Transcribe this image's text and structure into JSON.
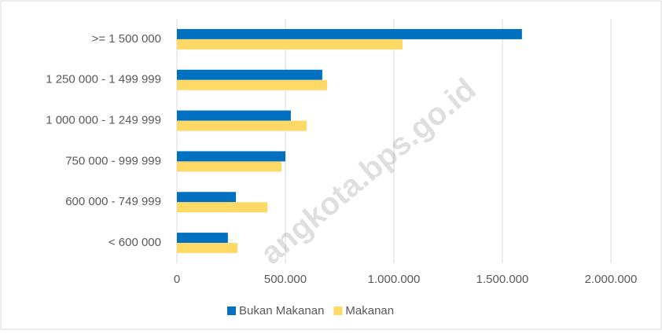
{
  "chart_data": {
    "type": "bar",
    "orientation": "horizontal",
    "categories": [
      ">= 1 500 000",
      "1 250 000 - 1 499 999",
      "1 000 000 - 1 249 999",
      "750 000 - 999 999",
      "600 000 - 749 999",
      "< 600 000"
    ],
    "series": [
      {
        "name": "Bukan Makanan",
        "color": "#0070c0",
        "values": [
          1590000,
          670000,
          525000,
          500000,
          272000,
          235000
        ]
      },
      {
        "name": "Makanan",
        "color": "#ffd966",
        "values": [
          1040000,
          692000,
          598000,
          482000,
          417000,
          279000
        ]
      }
    ],
    "xlim": [
      0,
      2000000
    ],
    "xticks": [
      0,
      {
        "value": 500000,
        "label": "500.000"
      },
      {
        "value": 1000000,
        "label": "1.000.000"
      },
      {
        "value": 1500000,
        "label": "1.500.000"
      },
      {
        "value": 2000000,
        "label": "2.000.000"
      }
    ],
    "grid": true,
    "legend": "bottom",
    "watermark": "angkota.bps.go.id"
  }
}
